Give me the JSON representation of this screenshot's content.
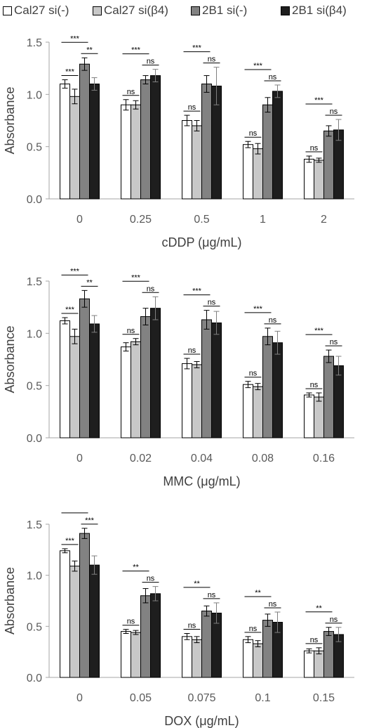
{
  "legend": [
    {
      "label": "Cal27 si(-)",
      "color": "#ffffff"
    },
    {
      "label": "Cal27 si(β4)",
      "color": "#c8c8c8"
    },
    {
      "label": "2B1 si(-)",
      "color": "#828282"
    },
    {
      "label": "2B1 si(β4)",
      "color": "#1e1e1e"
    }
  ],
  "chart_data": [
    {
      "type": "bar",
      "xlabel": "cDDP (μg/mL)",
      "ylabel": "Absorbance",
      "ylim": [
        0,
        1.5
      ],
      "yticks": [
        "0.0",
        "0.5",
        "1.0",
        "1.5"
      ],
      "categories": [
        "0",
        "0.25",
        "0.5",
        "1",
        "2"
      ],
      "series": [
        {
          "name": "Cal27 si(-)",
          "values": [
            1.1,
            0.9,
            0.75,
            0.52,
            0.38
          ],
          "errors": [
            0.04,
            0.05,
            0.05,
            0.03,
            0.03
          ]
        },
        {
          "name": "Cal27 si(β4)",
          "values": [
            0.98,
            0.9,
            0.7,
            0.48,
            0.37
          ],
          "errors": [
            0.07,
            0.04,
            0.05,
            0.05,
            0.02
          ]
        },
        {
          "name": "2B1 si(-)",
          "values": [
            1.29,
            1.14,
            1.1,
            0.9,
            0.65
          ],
          "errors": [
            0.06,
            0.04,
            0.08,
            0.07,
            0.05
          ]
        },
        {
          "name": "2B1 si(β4)",
          "values": [
            1.1,
            1.18,
            1.08,
            1.03,
            0.66
          ],
          "errors": [
            0.06,
            0.06,
            0.18,
            0.06,
            0.1
          ]
        }
      ],
      "significance": [
        {
          "category": 0,
          "pairs": [
            [
              "0-1",
              "***"
            ],
            [
              "0-2",
              "***"
            ],
            [
              "2-3",
              "**"
            ]
          ]
        },
        {
          "category": 1,
          "pairs": [
            [
              "0-1",
              "ns"
            ],
            [
              "0-2",
              "***"
            ],
            [
              "2-3",
              "ns"
            ]
          ]
        },
        {
          "category": 2,
          "pairs": [
            [
              "0-1",
              "ns"
            ],
            [
              "0-2",
              "***"
            ],
            [
              "2-3",
              "ns"
            ]
          ]
        },
        {
          "category": 3,
          "pairs": [
            [
              "0-1",
              "ns"
            ],
            [
              "0-2",
              "***"
            ],
            [
              "2-3",
              "ns"
            ]
          ]
        },
        {
          "category": 4,
          "pairs": [
            [
              "0-1",
              "ns"
            ],
            [
              "0-2",
              "***"
            ],
            [
              "2-3",
              "ns"
            ]
          ]
        }
      ]
    },
    {
      "type": "bar",
      "xlabel": "MMC (μg/mL)",
      "ylabel": "Absorbance",
      "ylim": [
        0,
        1.5
      ],
      "yticks": [
        "0.0",
        "0.5",
        "1.0",
        "1.5"
      ],
      "categories": [
        "0",
        "0.02",
        "0.04",
        "0.08",
        "0.16"
      ],
      "series": [
        {
          "name": "Cal27 si(-)",
          "values": [
            1.12,
            0.87,
            0.71,
            0.51,
            0.41
          ],
          "errors": [
            0.03,
            0.04,
            0.05,
            0.03,
            0.02
          ]
        },
        {
          "name": "Cal27 si(β4)",
          "values": [
            0.97,
            0.92,
            0.7,
            0.49,
            0.39
          ],
          "errors": [
            0.07,
            0.03,
            0.03,
            0.03,
            0.04
          ]
        },
        {
          "name": "2B1 si(-)",
          "values": [
            1.33,
            1.16,
            1.13,
            0.97,
            0.78
          ],
          "errors": [
            0.08,
            0.08,
            0.09,
            0.08,
            0.06
          ]
        },
        {
          "name": "2B1 si(β4)",
          "values": [
            1.09,
            1.24,
            1.1,
            0.91,
            0.69
          ],
          "errors": [
            0.08,
            0.11,
            0.11,
            0.11,
            0.09
          ]
        }
      ],
      "significance": [
        {
          "category": 0,
          "pairs": [
            [
              "0-1",
              "***"
            ],
            [
              "0-2",
              "***"
            ],
            [
              "2-3",
              "**"
            ]
          ]
        },
        {
          "category": 1,
          "pairs": [
            [
              "0-1",
              "ns"
            ],
            [
              "0-2",
              "***"
            ],
            [
              "2-3",
              "ns"
            ]
          ]
        },
        {
          "category": 2,
          "pairs": [
            [
              "0-1",
              "ns"
            ],
            [
              "0-2",
              "***"
            ],
            [
              "2-3",
              "ns"
            ]
          ]
        },
        {
          "category": 3,
          "pairs": [
            [
              "0-1",
              "ns"
            ],
            [
              "0-2",
              "***"
            ],
            [
              "2-3",
              "ns"
            ]
          ]
        },
        {
          "category": 4,
          "pairs": [
            [
              "0-1",
              "ns"
            ],
            [
              "0-2",
              "***"
            ],
            [
              "2-3",
              "ns"
            ]
          ]
        }
      ]
    },
    {
      "type": "bar",
      "xlabel": "DOX (μg/mL)",
      "ylabel": "Absorbance",
      "ylim": [
        0,
        1.5
      ],
      "yticks": [
        "0.0",
        "0.5",
        "1.0",
        "1.5"
      ],
      "categories": [
        "0",
        "0.05",
        "0.075",
        "0.1",
        "0.15"
      ],
      "series": [
        {
          "name": "Cal27 si(-)",
          "values": [
            1.24,
            0.45,
            0.4,
            0.37,
            0.26
          ],
          "errors": [
            0.02,
            0.02,
            0.03,
            0.03,
            0.02
          ]
        },
        {
          "name": "Cal27 si(β4)",
          "values": [
            1.09,
            0.44,
            0.37,
            0.33,
            0.26
          ],
          "errors": [
            0.05,
            0.02,
            0.03,
            0.03,
            0.03
          ]
        },
        {
          "name": "2B1 si(-)",
          "values": [
            1.41,
            0.8,
            0.65,
            0.56,
            0.45
          ],
          "errors": [
            0.05,
            0.07,
            0.05,
            0.06,
            0.04
          ]
        },
        {
          "name": "2B1 si(β4)",
          "values": [
            1.1,
            0.82,
            0.63,
            0.54,
            0.42
          ],
          "errors": [
            0.09,
            0.07,
            0.1,
            0.1,
            0.07
          ]
        }
      ],
      "significance": [
        {
          "category": 0,
          "pairs": [
            [
              "0-1",
              "***"
            ],
            [
              "0-2",
              "**"
            ],
            [
              "2-3",
              "***"
            ]
          ]
        },
        {
          "category": 1,
          "pairs": [
            [
              "0-1",
              "ns"
            ],
            [
              "0-2",
              "**"
            ],
            [
              "2-3",
              "ns"
            ]
          ]
        },
        {
          "category": 2,
          "pairs": [
            [
              "0-1",
              "ns"
            ],
            [
              "0-2",
              "**"
            ],
            [
              "2-3",
              "ns"
            ]
          ]
        },
        {
          "category": 3,
          "pairs": [
            [
              "0-1",
              "ns"
            ],
            [
              "0-2",
              "**"
            ],
            [
              "2-3",
              "ns"
            ]
          ]
        },
        {
          "category": 4,
          "pairs": [
            [
              "0-1",
              "ns"
            ],
            [
              "0-2",
              "**"
            ],
            [
              "2-3",
              "ns"
            ]
          ]
        }
      ]
    }
  ]
}
